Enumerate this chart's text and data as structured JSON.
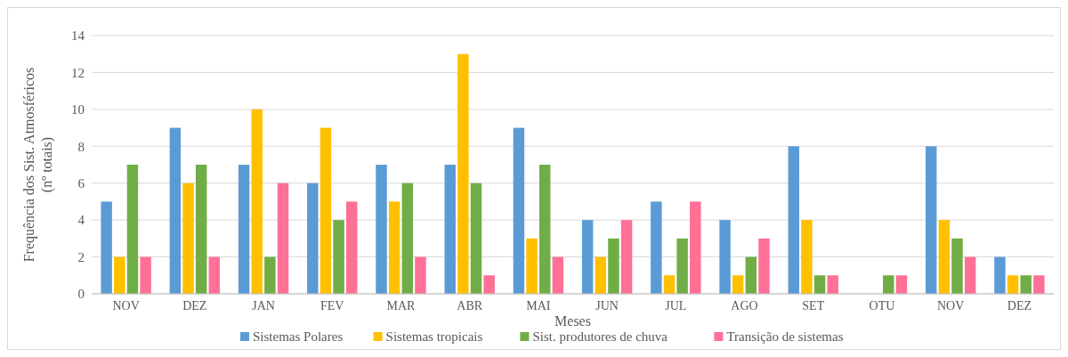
{
  "chart_data": {
    "type": "bar",
    "xlabel": "Meses",
    "ylabel": "Frequência dos  Sist. Atmosféricos\n(nº totais)",
    "categories": [
      "NOV",
      "DEZ",
      "JAN",
      "FEV",
      "MAR",
      "ABR",
      "MAI",
      "JUN",
      "JUL",
      "AGO",
      "SET",
      "OTU",
      "NOV",
      "DEZ"
    ],
    "series": [
      {
        "name": "Sistemas Polares",
        "color": "#5b9bd5",
        "values": [
          5,
          9,
          7,
          6,
          7,
          7,
          9,
          4,
          5,
          4,
          8,
          0,
          8,
          2
        ]
      },
      {
        "name": "Sistemas tropicais",
        "color": "#ffc000",
        "values": [
          2,
          6,
          10,
          9,
          5,
          13,
          3,
          2,
          1,
          1,
          4,
          0,
          4,
          1
        ]
      },
      {
        "name": "Sist. produtores de chuva",
        "color": "#70ad47",
        "values": [
          7,
          7,
          2,
          4,
          6,
          6,
          7,
          3,
          3,
          2,
          1,
          1,
          3,
          1
        ]
      },
      {
        "name": "Transição de sistemas",
        "color": "#ff7096",
        "values": [
          2,
          2,
          6,
          5,
          2,
          1,
          2,
          4,
          5,
          3,
          1,
          1,
          2,
          1
        ]
      }
    ],
    "ylim": [
      0,
      14
    ],
    "yticks": [
      0,
      2,
      4,
      6,
      8,
      10,
      12,
      14
    ],
    "grid": "y",
    "legend": "bottom"
  }
}
